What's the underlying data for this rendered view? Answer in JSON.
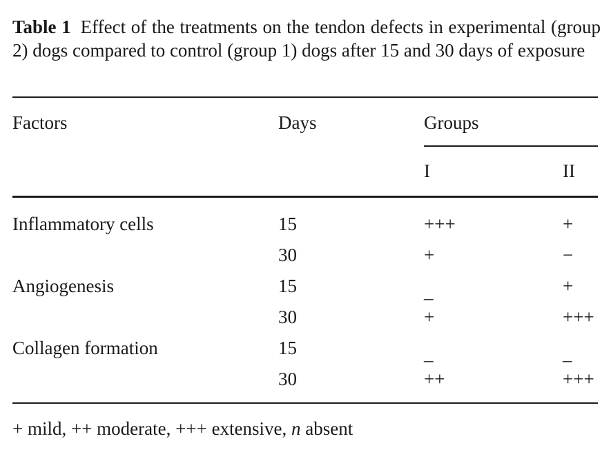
{
  "caption": {
    "label": "Table 1",
    "text": "Effect of the treatments on the tendon defects in experimental (group 2) dogs compared to control (group 1) dogs after 15 and 30 days of exposure"
  },
  "headers": {
    "factors": "Factors",
    "days": "Days",
    "groups": "Groups",
    "group_1": "I",
    "group_2": "II"
  },
  "rows": [
    {
      "factor": "Inflammatory cells",
      "days": "15",
      "g1": "+++",
      "g2": "+"
    },
    {
      "factor": "",
      "days": "30",
      "g1": "+",
      "g2": "−"
    },
    {
      "factor": "Angiogenesis",
      "days": "15",
      "g1": "_",
      "g2": "+"
    },
    {
      "factor": "",
      "days": "30",
      "g1": "+",
      "g2": "+++"
    },
    {
      "factor": "Collagen formation",
      "days": "15",
      "g1": "_",
      "g2": "_"
    },
    {
      "factor": "",
      "days": "30",
      "g1": "++",
      "g2": "+++"
    }
  ],
  "footnote": {
    "prefix": "+ mild, ++ moderate, +++ extensive, ",
    "italic": "n",
    "suffix": " absent"
  }
}
